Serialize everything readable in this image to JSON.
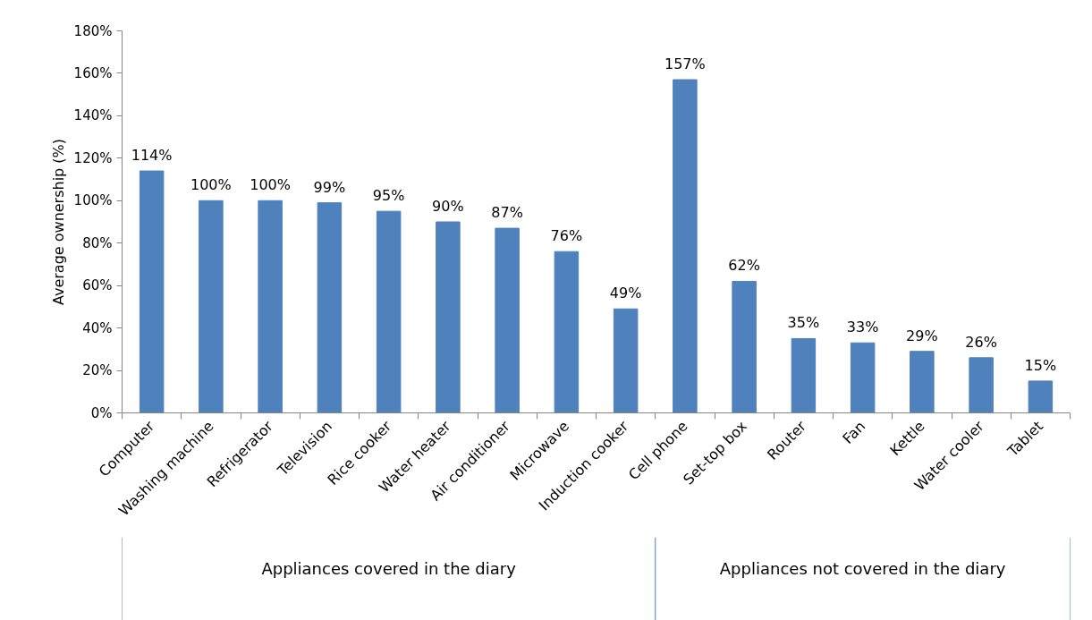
{
  "chart_data": {
    "type": "bar",
    "categories": [
      "Computer",
      "Washing machine",
      "Refrigerator",
      "Television",
      "Rice cooker",
      "Water heater",
      "Air conditioner",
      "Microwave",
      "Induction cooker",
      "Cell phone",
      "Set-top box",
      "Router",
      "Fan",
      "Kettle",
      "Water cooler",
      "Tablet"
    ],
    "values": [
      114,
      100,
      100,
      99,
      95,
      90,
      87,
      76,
      49,
      157,
      62,
      35,
      33,
      29,
      26,
      15
    ],
    "value_labels": [
      "114%",
      "100%",
      "100%",
      "99%",
      "95%",
      "90%",
      "87%",
      "76%",
      "49%",
      "157%",
      "62%",
      "35%",
      "33%",
      "29%",
      "26%",
      "15%"
    ],
    "color": "#4f81bd",
    "ylabel": "Average ownership (%)",
    "ylim": [
      0,
      180
    ],
    "yticks": [
      {
        "value": 0,
        "label": "0%"
      },
      {
        "value": 20,
        "label": "20%"
      },
      {
        "value": 40,
        "label": "40%"
      },
      {
        "value": 60,
        "label": "60%"
      },
      {
        "value": 80,
        "label": "80%"
      },
      {
        "value": 100,
        "label": "100%"
      },
      {
        "value": 120,
        "label": "120%"
      },
      {
        "value": 140,
        "label": "140%"
      },
      {
        "value": 160,
        "label": "160%"
      },
      {
        "value": 180,
        "label": "180%"
      }
    ],
    "grid": false,
    "annotations": [
      "Appliances covered in the diary",
      "Appliances not covered in the diary"
    ]
  }
}
